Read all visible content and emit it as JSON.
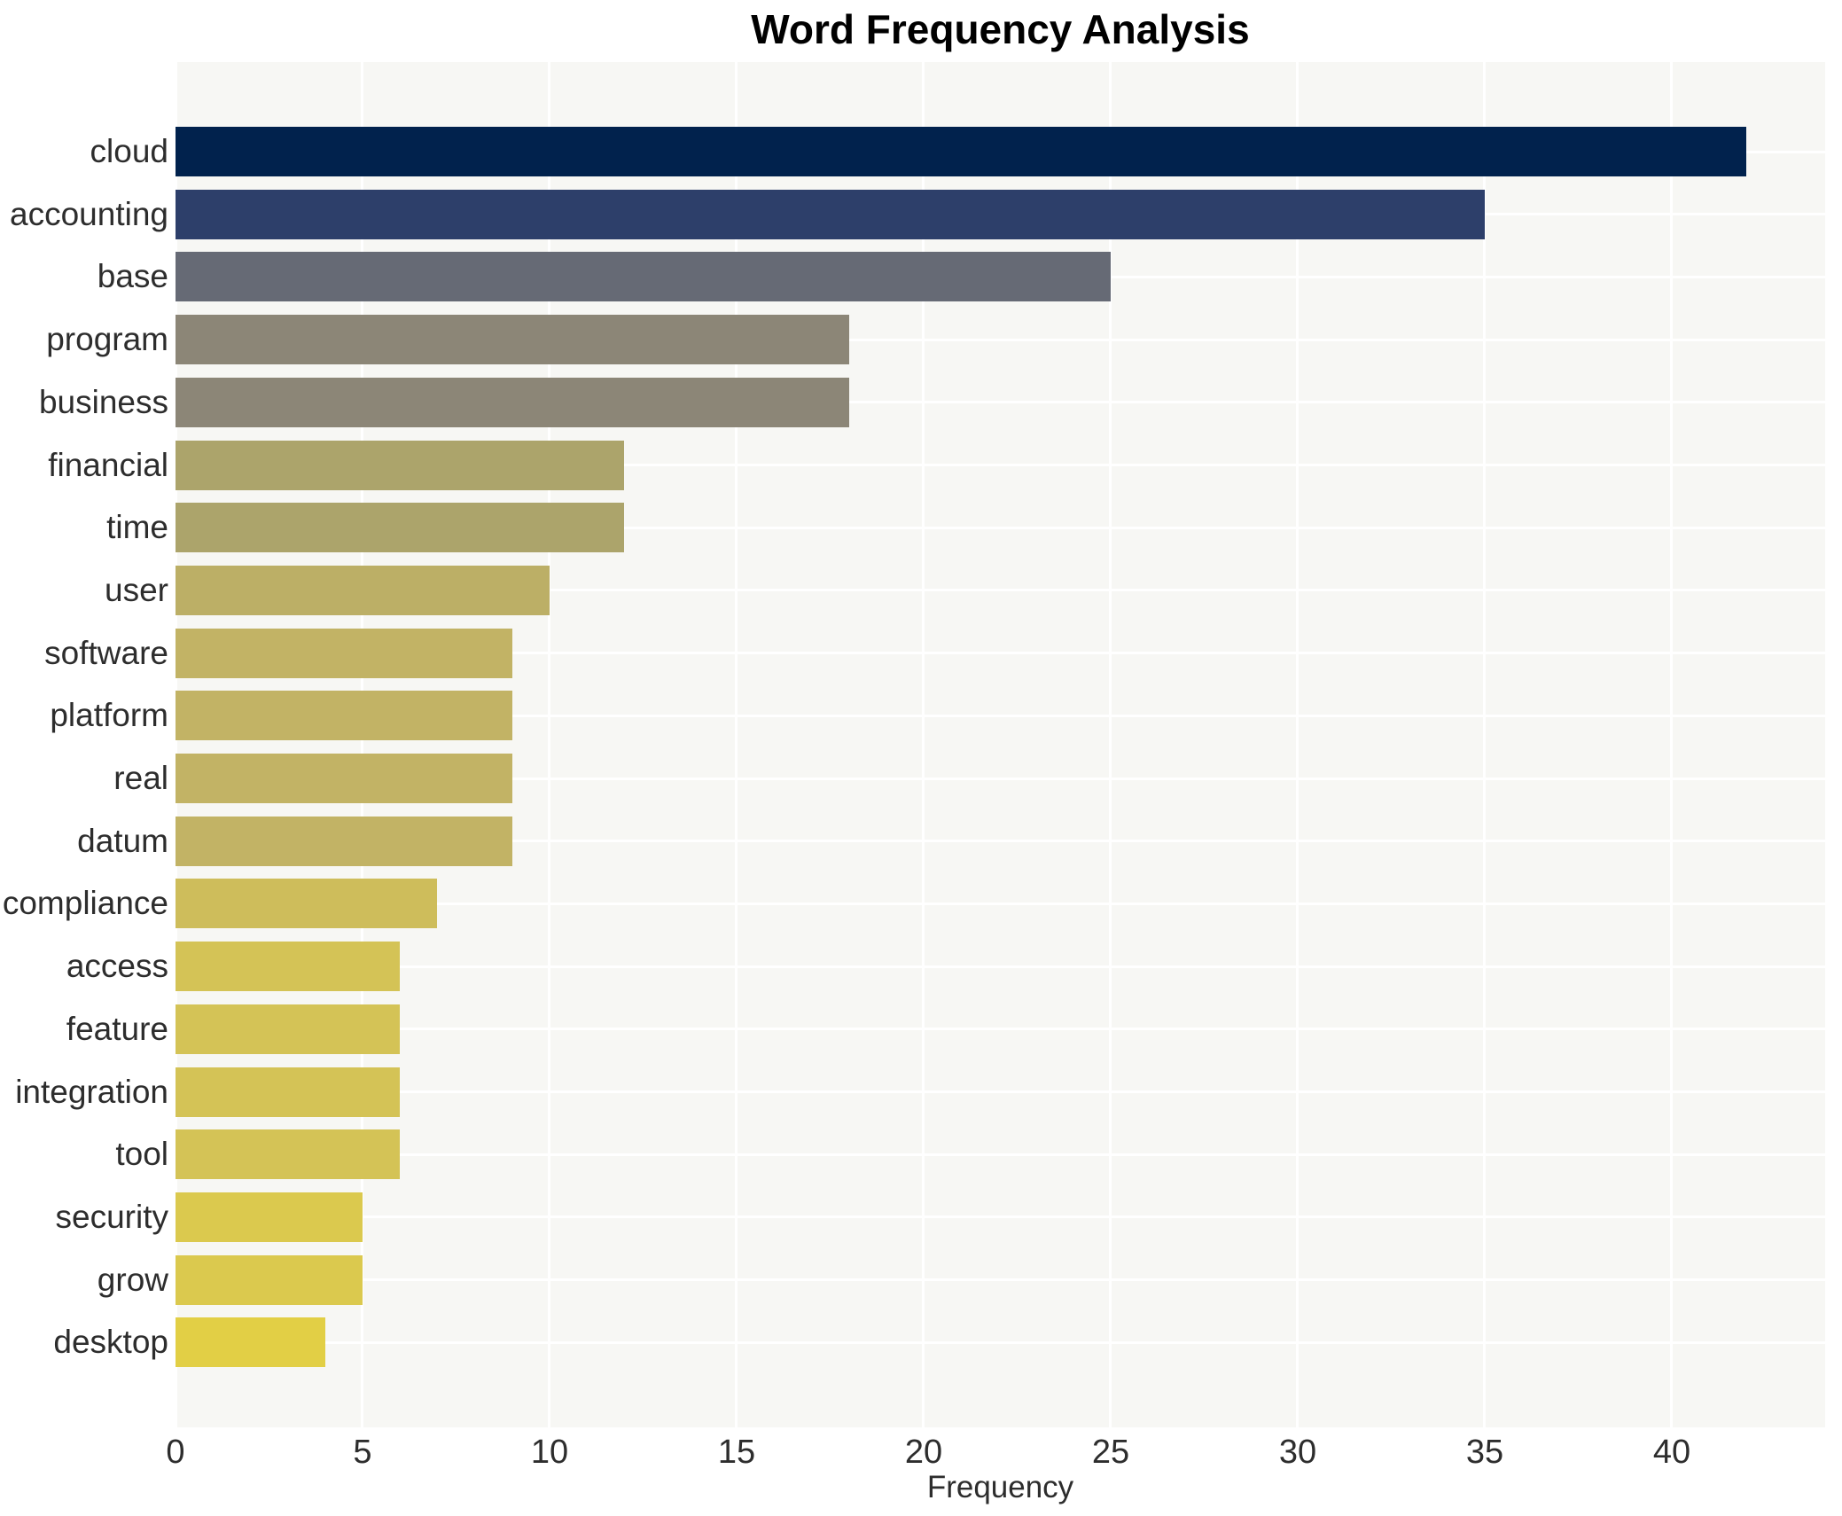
{
  "chart": {
    "title": "Word Frequency Analysis",
    "xlabel": "Frequency"
  },
  "chart_data": {
    "type": "bar",
    "orientation": "horizontal",
    "title": "Word Frequency Analysis",
    "xlabel": "Frequency",
    "ylabel": "",
    "categories": [
      "cloud",
      "accounting",
      "base",
      "program",
      "business",
      "financial",
      "time",
      "user",
      "software",
      "platform",
      "real",
      "datum",
      "compliance",
      "access",
      "feature",
      "integration",
      "tool",
      "security",
      "grow",
      "desktop"
    ],
    "values": [
      42,
      35,
      25,
      18,
      18,
      12,
      12,
      10,
      9,
      9,
      9,
      9,
      7,
      6,
      6,
      6,
      6,
      5,
      5,
      4
    ],
    "bar_colors": [
      "#01224d",
      "#2d3f6a",
      "#666a75",
      "#8c8677",
      "#8c8677",
      "#aca46b",
      "#aca46b",
      "#bcaf66",
      "#c2b365",
      "#c2b365",
      "#c2b365",
      "#c2b365",
      "#cebd5b",
      "#d4c356",
      "#d4c356",
      "#d4c356",
      "#d4c356",
      "#dbc94e",
      "#dbc94e",
      "#e2cf45"
    ],
    "xlim": [
      0,
      44.1
    ],
    "x_ticks": [
      0,
      5,
      10,
      15,
      20,
      25,
      30,
      35,
      40
    ],
    "grid": true,
    "legend": "none",
    "plot_background": "#f7f7f4",
    "grid_color": "#ffffff",
    "tick_text_color": "#2d2d2d",
    "title_color": "#000000"
  }
}
